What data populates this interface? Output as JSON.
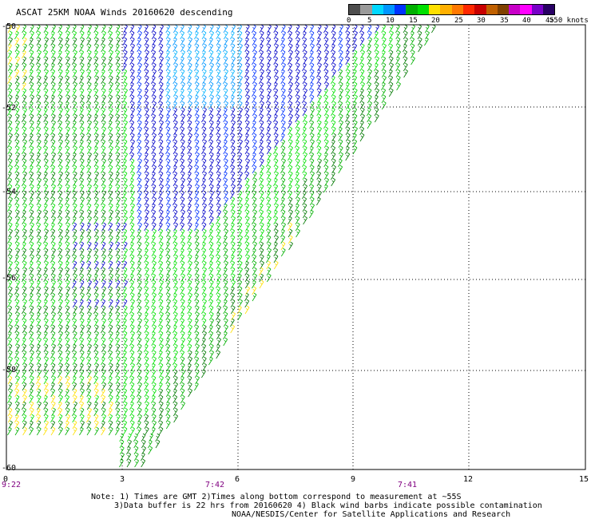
{
  "title": "ASCAT 25KM NOAA Winds 20160620 descending",
  "legend": {
    "unit_label": ">50 knots",
    "ticks": [
      "0",
      "5",
      "10",
      "15",
      "20",
      "25",
      "30",
      "35",
      "40",
      "45"
    ],
    "colors": [
      "#4d4d4d",
      "#9a9a9a",
      "#00d8ff",
      "#0096ff",
      "#0032ff",
      "#00b000",
      "#00e000",
      "#ffe000",
      "#ffb000",
      "#ff7800",
      "#ff2800",
      "#c80000",
      "#c06000",
      "#804000",
      "#c800c8",
      "#ff00ff",
      "#7800c8",
      "#280064"
    ]
  },
  "axes": {
    "x_ticks": [
      "0",
      "3",
      "6",
      "9",
      "12",
      "15"
    ],
    "y_ticks": [
      "-50",
      "-52",
      "-54",
      "-56",
      "-58",
      "-60"
    ],
    "time_labels": [
      "9:22",
      "7:42",
      "7:41"
    ]
  },
  "notes": {
    "line1": "Note: 1) Times are GMT 2)Times along bottom correspond to measurement at ~55S",
    "line2": "3)Data buffer is 22 hrs from 20160620 4) Black wind barbs indicate possible contamination",
    "line3": "NOAA/NESDIS/Center for Satellite Applications and Research"
  },
  "swath_colors": {
    "blue_dark": "#0000c8",
    "blue_mid": "#0032ff",
    "blue_light": "#0096ff",
    "cyan": "#00b4ff",
    "green_bright": "#00e000",
    "green_mid": "#00b000",
    "green_dark": "#007800",
    "yellow": "#ffe000",
    "red": "#ff2800"
  }
}
